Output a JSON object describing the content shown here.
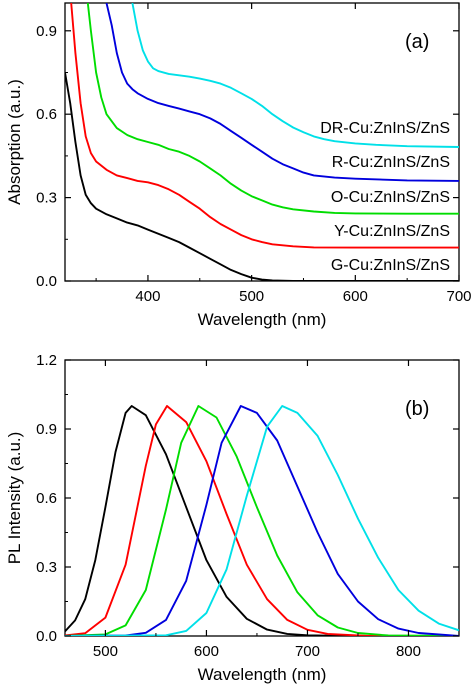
{
  "chart_data": [
    {
      "type": "line",
      "panel_label": "(a)",
      "xlabel": "Wavelength (nm)",
      "ylabel": "Absorption (a.u.)",
      "xlim": [
        320,
        700
      ],
      "ylim": [
        0.0,
        1.0
      ],
      "xticks": [
        400,
        500,
        600,
        700
      ],
      "yticks": [
        0.0,
        0.3,
        0.6,
        0.9
      ],
      "xtick_labels": [
        "400",
        "500",
        "600",
        "700"
      ],
      "ytick_labels": [
        "0.0",
        "0.3",
        "0.6",
        "0.9"
      ],
      "grid": false,
      "series": [
        {
          "name": "G-Cu:ZnInS/ZnS",
          "color": "#000000",
          "points": [
            [
              320,
              0.75
            ],
            [
              325,
              0.64
            ],
            [
              330,
              0.5
            ],
            [
              335,
              0.38
            ],
            [
              340,
              0.31
            ],
            [
              345,
              0.28
            ],
            [
              350,
              0.26
            ],
            [
              360,
              0.24
            ],
            [
              370,
              0.225
            ],
            [
              380,
              0.21
            ],
            [
              390,
              0.2
            ],
            [
              400,
              0.185
            ],
            [
              410,
              0.17
            ],
            [
              420,
              0.155
            ],
            [
              430,
              0.14
            ],
            [
              440,
              0.12
            ],
            [
              450,
              0.1
            ],
            [
              460,
              0.08
            ],
            [
              470,
              0.06
            ],
            [
              480,
              0.04
            ],
            [
              490,
              0.025
            ],
            [
              500,
              0.012
            ],
            [
              510,
              0.005
            ],
            [
              520,
              0.002
            ],
            [
              540,
              0.0
            ],
            [
              700,
              0.0
            ]
          ]
        },
        {
          "name": "Y-Cu:ZnInS/ZnS",
          "color": "#ff0000",
          "points": [
            [
              326,
              1.0
            ],
            [
              330,
              0.82
            ],
            [
              335,
              0.64
            ],
            [
              340,
              0.52
            ],
            [
              345,
              0.46
            ],
            [
              350,
              0.43
            ],
            [
              360,
              0.4
            ],
            [
              370,
              0.38
            ],
            [
              380,
              0.37
            ],
            [
              390,
              0.36
            ],
            [
              400,
              0.355
            ],
            [
              410,
              0.345
            ],
            [
              420,
              0.33
            ],
            [
              430,
              0.31
            ],
            [
              440,
              0.285
            ],
            [
              450,
              0.26
            ],
            [
              460,
              0.23
            ],
            [
              470,
              0.205
            ],
            [
              480,
              0.185
            ],
            [
              490,
              0.165
            ],
            [
              500,
              0.15
            ],
            [
              510,
              0.14
            ],
            [
              520,
              0.132
            ],
            [
              540,
              0.125
            ],
            [
              560,
              0.121
            ],
            [
              600,
              0.12
            ],
            [
              700,
              0.12
            ]
          ]
        },
        {
          "name": "O-Cu:ZnInS/ZnS",
          "color": "#00dd00",
          "points": [
            [
              342,
              1.0
            ],
            [
              345,
              0.9
            ],
            [
              350,
              0.75
            ],
            [
              355,
              0.66
            ],
            [
              360,
              0.6
            ],
            [
              370,
              0.55
            ],
            [
              380,
              0.525
            ],
            [
              390,
              0.51
            ],
            [
              400,
              0.5
            ],
            [
              410,
              0.49
            ],
            [
              420,
              0.475
            ],
            [
              430,
              0.465
            ],
            [
              440,
              0.45
            ],
            [
              450,
              0.43
            ],
            [
              460,
              0.405
            ],
            [
              470,
              0.38
            ],
            [
              480,
              0.35
            ],
            [
              490,
              0.325
            ],
            [
              500,
              0.305
            ],
            [
              510,
              0.29
            ],
            [
              520,
              0.275
            ],
            [
              530,
              0.265
            ],
            [
              540,
              0.258
            ],
            [
              560,
              0.25
            ],
            [
              580,
              0.245
            ],
            [
              600,
              0.243
            ],
            [
              650,
              0.242
            ],
            [
              700,
              0.242
            ]
          ]
        },
        {
          "name": "R-Cu:ZnInS/ZnS",
          "color": "#0000dd",
          "points": [
            [
              360,
              1.0
            ],
            [
              365,
              0.92
            ],
            [
              370,
              0.82
            ],
            [
              375,
              0.75
            ],
            [
              380,
              0.71
            ],
            [
              385,
              0.69
            ],
            [
              390,
              0.675
            ],
            [
              400,
              0.655
            ],
            [
              410,
              0.64
            ],
            [
              420,
              0.63
            ],
            [
              430,
              0.62
            ],
            [
              440,
              0.61
            ],
            [
              450,
              0.6
            ],
            [
              460,
              0.585
            ],
            [
              470,
              0.565
            ],
            [
              480,
              0.54
            ],
            [
              490,
              0.515
            ],
            [
              500,
              0.49
            ],
            [
              510,
              0.465
            ],
            [
              520,
              0.44
            ],
            [
              530,
              0.42
            ],
            [
              540,
              0.405
            ],
            [
              550,
              0.39
            ],
            [
              560,
              0.38
            ],
            [
              580,
              0.372
            ],
            [
              600,
              0.368
            ],
            [
              650,
              0.362
            ],
            [
              700,
              0.36
            ]
          ]
        },
        {
          "name": "DR-Cu:ZnInS/ZnS",
          "color": "#00e0e8",
          "points": [
            [
              385,
              1.0
            ],
            [
              390,
              0.9
            ],
            [
              395,
              0.83
            ],
            [
              400,
              0.79
            ],
            [
              405,
              0.765
            ],
            [
              410,
              0.755
            ],
            [
              420,
              0.745
            ],
            [
              430,
              0.74
            ],
            [
              440,
              0.735
            ],
            [
              450,
              0.728
            ],
            [
              460,
              0.72
            ],
            [
              470,
              0.71
            ],
            [
              480,
              0.695
            ],
            [
              490,
              0.675
            ],
            [
              500,
              0.655
            ],
            [
              510,
              0.63
            ],
            [
              520,
              0.6
            ],
            [
              530,
              0.575
            ],
            [
              540,
              0.552
            ],
            [
              550,
              0.535
            ],
            [
              560,
              0.52
            ],
            [
              570,
              0.51
            ],
            [
              580,
              0.503
            ],
            [
              600,
              0.495
            ],
            [
              620,
              0.49
            ],
            [
              650,
              0.485
            ],
            [
              700,
              0.482
            ]
          ]
        }
      ]
    },
    {
      "type": "line",
      "panel_label": "(b)",
      "xlabel": "Wavelength (nm)",
      "ylabel": "PL Intensity (a.u.)",
      "xlim": [
        460,
        850
      ],
      "ylim": [
        0.0,
        1.2
      ],
      "xticks": [
        500,
        600,
        700,
        800
      ],
      "yticks": [
        0.0,
        0.3,
        0.6,
        0.9,
        1.2
      ],
      "xtick_labels": [
        "500",
        "600",
        "700",
        "800"
      ],
      "ytick_labels": [
        "0.0",
        "0.3",
        "0.6",
        "0.9",
        "1.2"
      ],
      "grid": false,
      "series": [
        {
          "color": "#000000",
          "peak": 526,
          "sigma_left": 24,
          "sigma_right": 50,
          "points": [
            [
              460,
              0.02
            ],
            [
              470,
              0.068
            ],
            [
              480,
              0.16
            ],
            [
              490,
              0.33
            ],
            [
              500,
              0.56
            ],
            [
              510,
              0.8
            ],
            [
              520,
              0.97
            ],
            [
              526,
              1.0
            ],
            [
              540,
              0.96
            ],
            [
              560,
              0.79
            ],
            [
              580,
              0.56
            ],
            [
              600,
              0.33
            ],
            [
              620,
              0.17
            ],
            [
              640,
              0.075
            ],
            [
              660,
              0.028
            ],
            [
              680,
              0.009
            ],
            [
              700,
              0.003
            ],
            [
              740,
              0.0
            ],
            [
              850,
              0.0
            ]
          ]
        },
        {
          "color": "#ff0000",
          "peak": 561,
          "sigma_left": 27,
          "sigma_right": 52,
          "points": [
            [
              460,
              0.002
            ],
            [
              480,
              0.012
            ],
            [
              500,
              0.08
            ],
            [
              520,
              0.31
            ],
            [
              540,
              0.74
            ],
            [
              550,
              0.92
            ],
            [
              561,
              1.0
            ],
            [
              580,
              0.93
            ],
            [
              600,
              0.76
            ],
            [
              620,
              0.53
            ],
            [
              640,
              0.31
            ],
            [
              660,
              0.16
            ],
            [
              680,
              0.07
            ],
            [
              700,
              0.027
            ],
            [
              720,
              0.009
            ],
            [
              760,
              0.0
            ],
            [
              850,
              0.0
            ]
          ]
        },
        {
          "color": "#00dd00",
          "peak": 592,
          "sigma_left": 29,
          "sigma_right": 55,
          "points": [
            [
              460,
              0.0
            ],
            [
              500,
              0.007
            ],
            [
              520,
              0.046
            ],
            [
              540,
              0.2
            ],
            [
              560,
              0.55
            ],
            [
              575,
              0.84
            ],
            [
              592,
              1.0
            ],
            [
              610,
              0.95
            ],
            [
              630,
              0.78
            ],
            [
              650,
              0.56
            ],
            [
              670,
              0.35
            ],
            [
              690,
              0.19
            ],
            [
              710,
              0.09
            ],
            [
              730,
              0.037
            ],
            [
              750,
              0.013
            ],
            [
              780,
              0.002
            ],
            [
              850,
              0.0
            ]
          ]
        },
        {
          "color": "#0000dd",
          "peak": 634,
          "sigma_left": 32,
          "sigma_right": 60,
          "points": [
            [
              460,
              0.0
            ],
            [
              520,
              0.002
            ],
            [
              540,
              0.014
            ],
            [
              560,
              0.07
            ],
            [
              580,
              0.24
            ],
            [
              600,
              0.57
            ],
            [
              615,
              0.84
            ],
            [
              634,
              1.0
            ],
            [
              650,
              0.97
            ],
            [
              670,
              0.85
            ],
            [
              690,
              0.65
            ],
            [
              710,
              0.45
            ],
            [
              730,
              0.27
            ],
            [
              750,
              0.15
            ],
            [
              770,
              0.073
            ],
            [
              790,
              0.032
            ],
            [
              810,
              0.013
            ],
            [
              850,
              0.0
            ]
          ]
        },
        {
          "color": "#00e0e8",
          "peak": 675,
          "sigma_left": 35,
          "sigma_right": 65,
          "points": [
            [
              460,
              0.0
            ],
            [
              560,
              0.003
            ],
            [
              580,
              0.022
            ],
            [
              600,
              0.1
            ],
            [
              620,
              0.29
            ],
            [
              640,
              0.61
            ],
            [
              660,
              0.91
            ],
            [
              675,
              1.0
            ],
            [
              690,
              0.97
            ],
            [
              710,
              0.87
            ],
            [
              730,
              0.7
            ],
            [
              750,
              0.51
            ],
            [
              770,
              0.34
            ],
            [
              790,
              0.2
            ],
            [
              810,
              0.11
            ],
            [
              830,
              0.054
            ],
            [
              850,
              0.025
            ]
          ]
        }
      ]
    }
  ]
}
